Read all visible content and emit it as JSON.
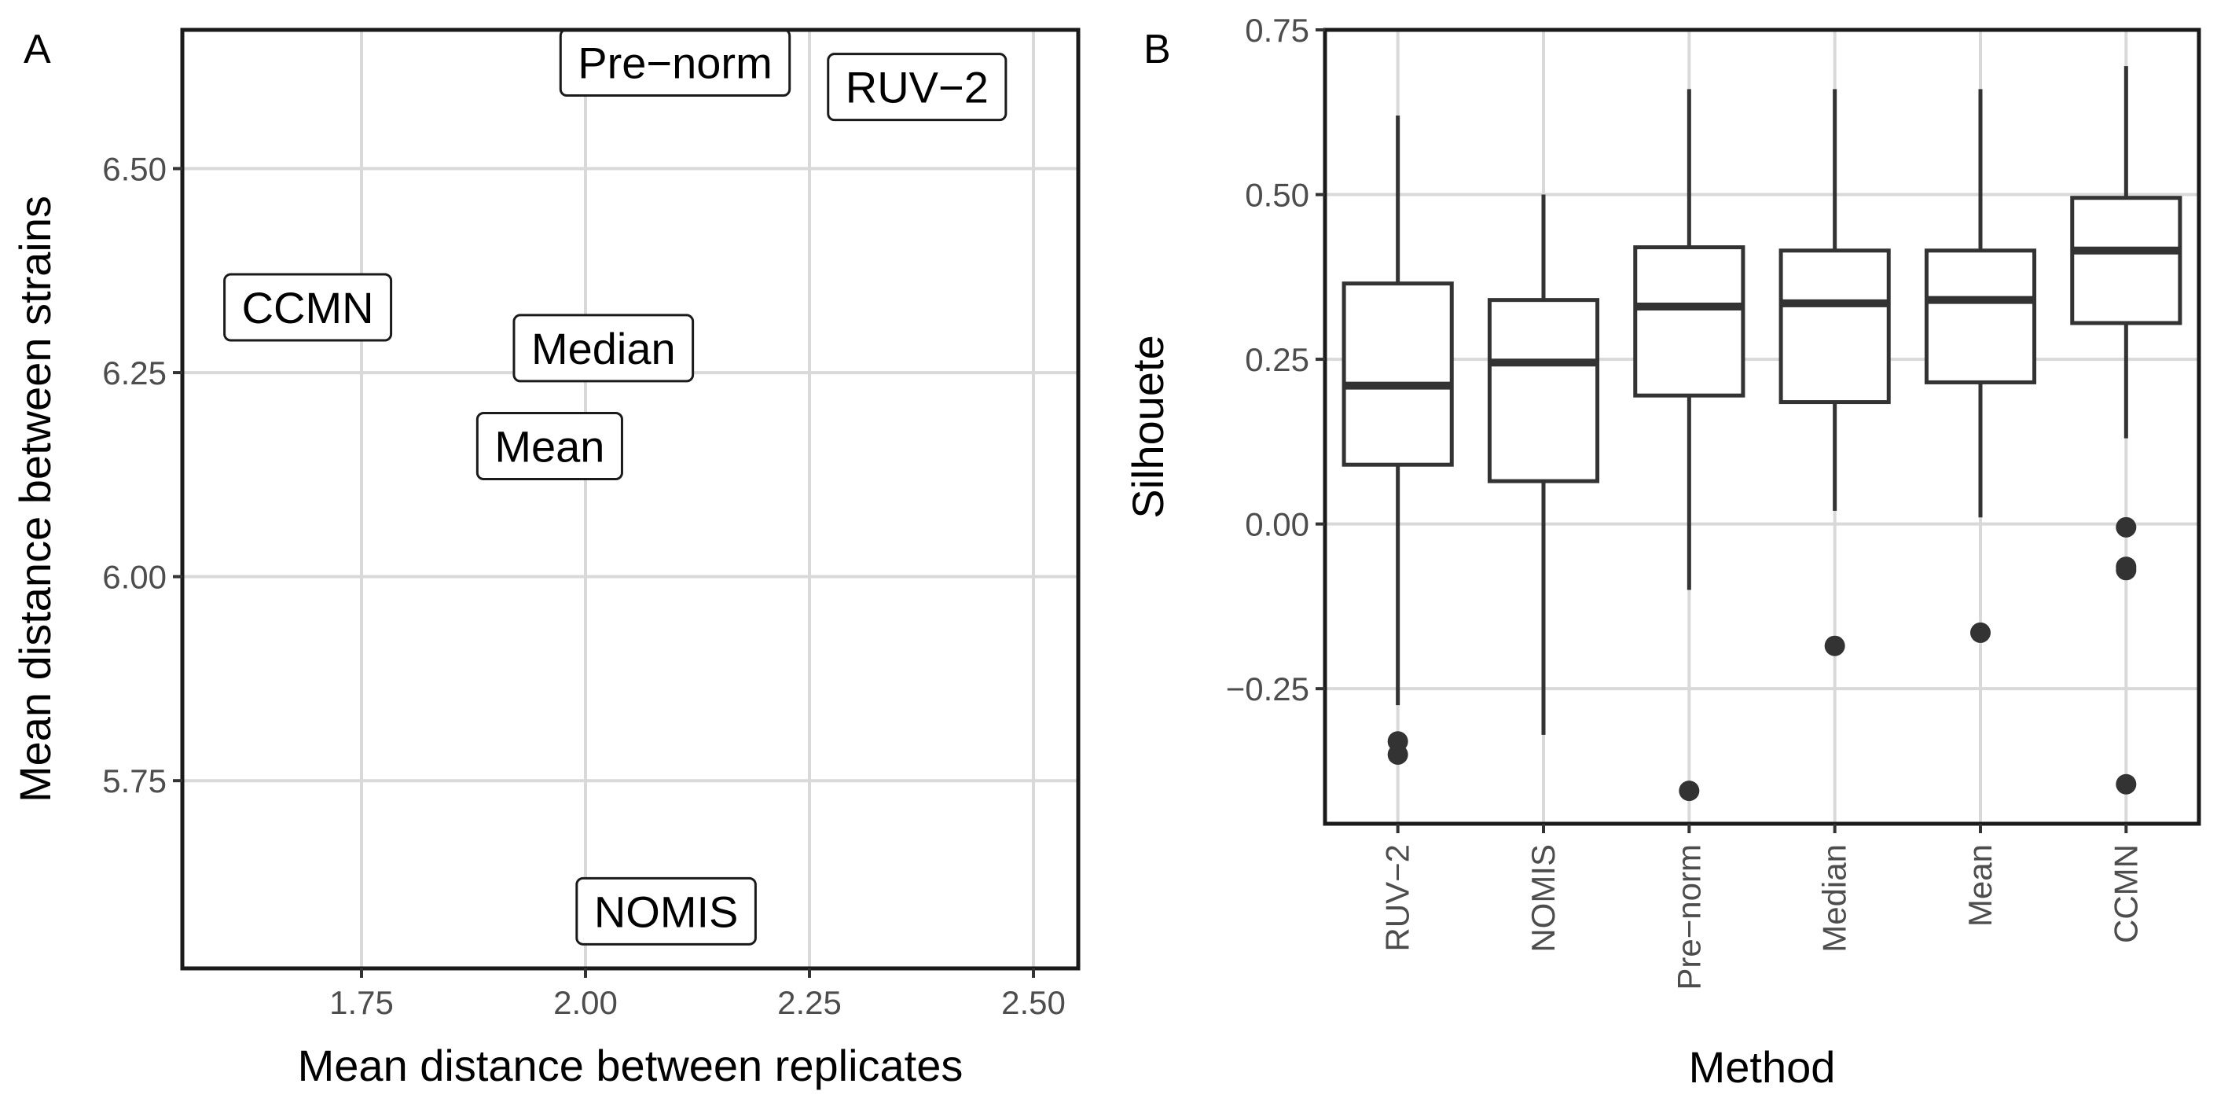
{
  "chart_data": [
    {
      "panel": "A",
      "type": "scatter",
      "title": "",
      "xlabel": "Mean distance between replicates",
      "ylabel": "Mean distance between strains",
      "xlim": [
        1.55,
        2.55
      ],
      "ylim": [
        5.52,
        6.67
      ],
      "xticks": [
        1.75,
        2.0,
        2.25,
        2.5
      ],
      "xtick_labels": [
        "1.75",
        "2.00",
        "2.25",
        "2.50"
      ],
      "yticks": [
        5.75,
        6.0,
        6.25,
        6.5
      ],
      "ytick_labels": [
        "5.75",
        "6.00",
        "6.25",
        "6.50"
      ],
      "grid": true,
      "points": [
        {
          "label": "Pre−norm",
          "x": 2.1,
          "y": 6.63
        },
        {
          "label": "RUV−2",
          "x": 2.37,
          "y": 6.6
        },
        {
          "label": "CCMN",
          "x": 1.69,
          "y": 6.33
        },
        {
          "label": "Median",
          "x": 2.02,
          "y": 6.28
        },
        {
          "label": "Mean",
          "x": 1.96,
          "y": 6.16
        },
        {
          "label": "NOMIS",
          "x": 2.09,
          "y": 5.59
        }
      ]
    },
    {
      "panel": "B",
      "type": "box",
      "title": "",
      "xlabel": "Method",
      "ylabel": "Silhouete",
      "ylim": [
        -0.455,
        0.75
      ],
      "yticks": [
        -0.25,
        0.0,
        0.25,
        0.5,
        0.75
      ],
      "ytick_labels": [
        "−0.25",
        "0.00",
        "0.25",
        "0.50",
        "0.75"
      ],
      "grid": true,
      "categories": [
        "RUV−2",
        "NOMIS",
        "Pre−norm",
        "Median",
        "Mean",
        "CCMN"
      ],
      "boxes": [
        {
          "whisker_low": -0.275,
          "q1": 0.09,
          "median": 0.21,
          "q3": 0.365,
          "whisker_high": 0.62,
          "outliers": [
            -0.33,
            -0.35
          ]
        },
        {
          "whisker_low": -0.32,
          "q1": 0.065,
          "median": 0.245,
          "q3": 0.34,
          "whisker_high": 0.5,
          "outliers": []
        },
        {
          "whisker_low": -0.1,
          "q1": 0.195,
          "median": 0.33,
          "q3": 0.42,
          "whisker_high": 0.66,
          "outliers": [
            -0.405
          ]
        },
        {
          "whisker_low": 0.02,
          "q1": 0.185,
          "median": 0.335,
          "q3": 0.415,
          "whisker_high": 0.66,
          "outliers": [
            -0.185
          ]
        },
        {
          "whisker_low": 0.01,
          "q1": 0.215,
          "median": 0.34,
          "q3": 0.415,
          "whisker_high": 0.66,
          "outliers": [
            -0.165
          ]
        },
        {
          "whisker_low": 0.13,
          "q1": 0.305,
          "median": 0.415,
          "q3": 0.495,
          "whisker_high": 0.695,
          "outliers": [
            -0.005,
            -0.065,
            -0.07,
            -0.395
          ]
        }
      ]
    }
  ],
  "panels": {
    "a_tag": "A",
    "b_tag": "B"
  }
}
